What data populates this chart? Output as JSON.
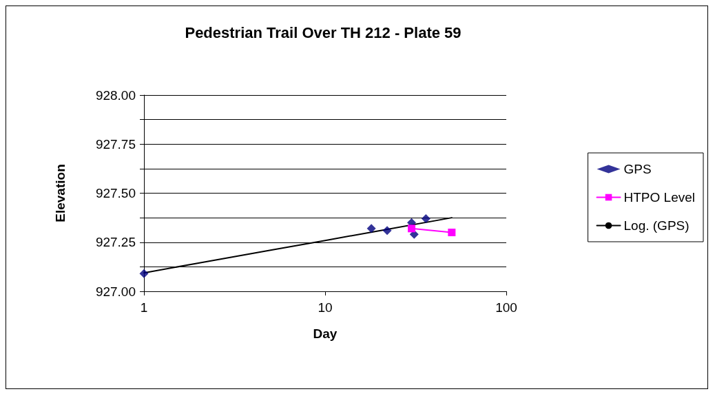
{
  "chart_data": {
    "type": "scatter",
    "title": "Pedestrian Trail Over TH 212 - Plate 59",
    "xlabel": "Day",
    "ylabel": "Elevation",
    "log": "x",
    "xlim": [
      1,
      100
    ],
    "xticks": [
      1,
      10,
      100
    ],
    "ylim": [
      927,
      928
    ],
    "yticks": [
      {
        "value": 927,
        "label": "927.00"
      },
      {
        "value": 927.125,
        "label": null
      },
      {
        "value": 927.25,
        "label": "927.25"
      },
      {
        "value": 927.375,
        "label": null
      },
      {
        "value": 927.5,
        "label": "927.50"
      },
      {
        "value": 927.625,
        "label": null
      },
      {
        "value": 927.75,
        "label": "927.75"
      },
      {
        "value": 927.875,
        "label": null
      },
      {
        "value": 928,
        "label": "928.00"
      }
    ],
    "grid": "y",
    "legend": "right",
    "series": [
      {
        "name": "GPS",
        "marker": "diamond",
        "color": "#000080",
        "x": [
          1,
          18,
          22,
          30,
          31,
          36
        ],
        "values": [
          927.09,
          927.32,
          927.31,
          927.35,
          927.29,
          927.37
        ]
      },
      {
        "name": "HTPO Level",
        "type": "line",
        "marker": "square",
        "color": "#ff00ff",
        "x": [
          30,
          50
        ],
        "values": [
          927.32,
          927.3
        ]
      },
      {
        "name": "Log. (GPS)",
        "type": "line",
        "marker": "none",
        "color": "#000000",
        "x": [
          1,
          2,
          5,
          10,
          20,
          50
        ],
        "values": [
          927.094,
          927.144,
          927.21,
          927.259,
          927.309,
          927.375
        ]
      }
    ]
  }
}
